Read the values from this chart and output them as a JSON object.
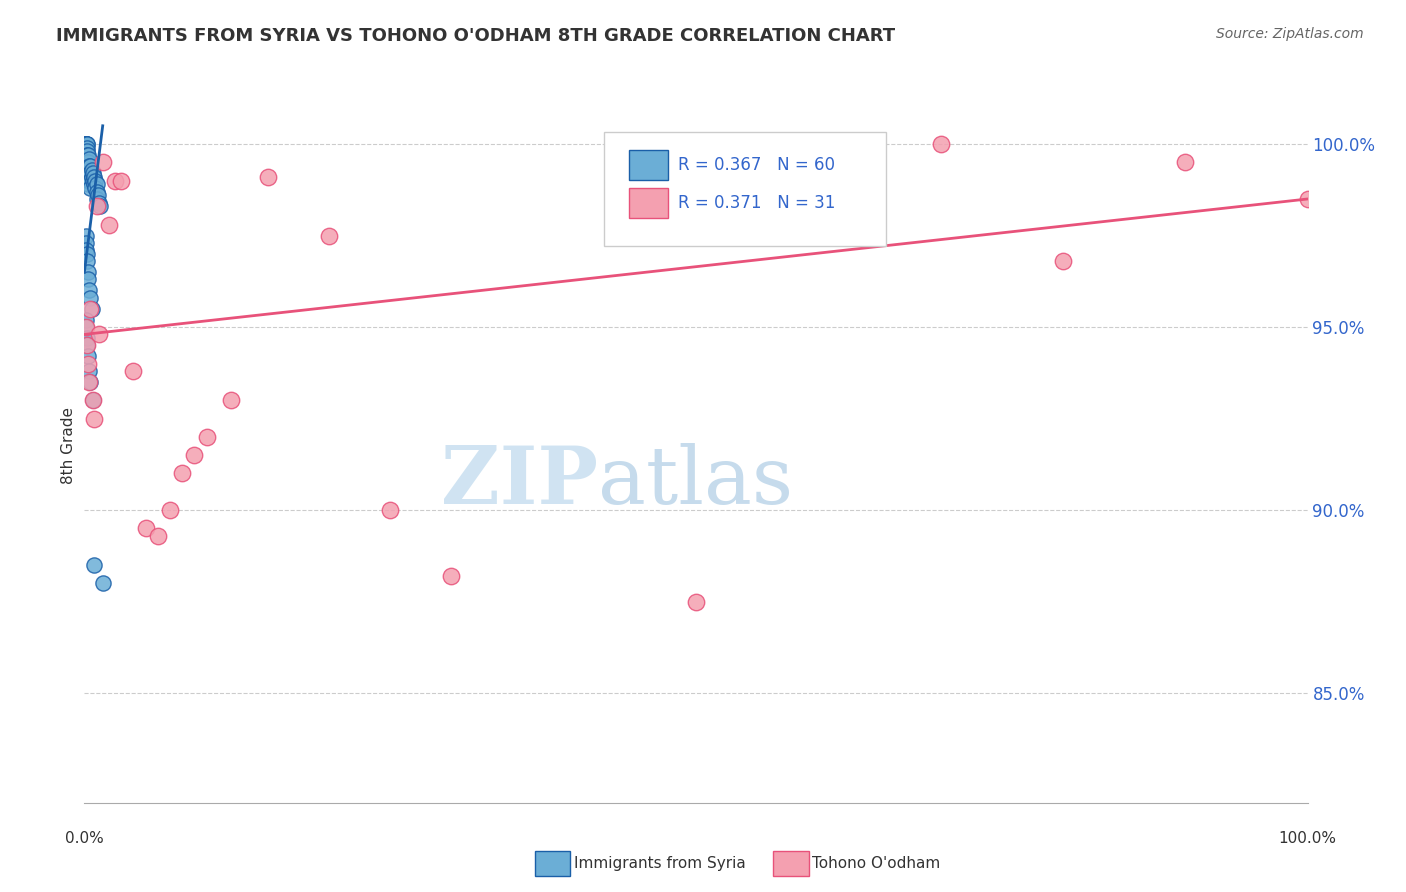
{
  "title": "IMMIGRANTS FROM SYRIA VS TOHONO O'ODHAM 8TH GRADE CORRELATION CHART",
  "source": "Source: ZipAtlas.com",
  "ylabel": "8th Grade",
  "yticks": [
    85.0,
    90.0,
    95.0,
    100.0
  ],
  "ytick_labels": [
    "85.0%",
    "90.0%",
    "95.0%",
    "100.0%"
  ],
  "xlim": [
    0.0,
    1.0
  ],
  "ylim": [
    82.0,
    101.5
  ],
  "blue_R": 0.367,
  "blue_N": 60,
  "pink_R": 0.371,
  "pink_N": 31,
  "blue_color": "#6baed6",
  "pink_color": "#f4a0b0",
  "blue_line_color": "#1a5fa8",
  "pink_line_color": "#e8527a",
  "legend_label_blue": "Immigrants from Syria",
  "legend_label_pink": "Tohono O'odham",
  "watermark_zip": "ZIP",
  "watermark_atlas": "atlas",
  "blue_scatter_x": [
    0.001,
    0.001,
    0.001,
    0.001,
    0.001,
    0.001,
    0.002,
    0.002,
    0.002,
    0.002,
    0.002,
    0.002,
    0.002,
    0.003,
    0.003,
    0.003,
    0.003,
    0.003,
    0.004,
    0.004,
    0.004,
    0.004,
    0.005,
    0.005,
    0.005,
    0.005,
    0.006,
    0.006,
    0.007,
    0.007,
    0.008,
    0.008,
    0.009,
    0.009,
    0.01,
    0.01,
    0.01,
    0.011,
    0.012,
    0.013,
    0.001,
    0.001,
    0.001,
    0.002,
    0.002,
    0.003,
    0.003,
    0.004,
    0.005,
    0.006,
    0.001,
    0.001,
    0.002,
    0.002,
    0.003,
    0.004,
    0.005,
    0.007,
    0.008,
    0.015
  ],
  "blue_scatter_y": [
    100.0,
    100.0,
    100.0,
    100.0,
    100.0,
    99.8,
    100.0,
    100.0,
    99.9,
    99.8,
    99.7,
    99.5,
    99.3,
    99.7,
    99.5,
    99.3,
    99.1,
    98.9,
    99.6,
    99.4,
    99.2,
    99.0,
    99.4,
    99.2,
    99.0,
    98.8,
    99.3,
    99.1,
    99.2,
    99.0,
    99.1,
    98.9,
    99.0,
    98.8,
    98.9,
    98.7,
    98.5,
    98.6,
    98.4,
    98.3,
    97.5,
    97.3,
    97.1,
    97.0,
    96.8,
    96.5,
    96.3,
    96.0,
    95.8,
    95.5,
    95.2,
    95.0,
    94.7,
    94.5,
    94.2,
    93.8,
    93.5,
    93.0,
    88.5,
    88.0
  ],
  "pink_scatter_x": [
    0.001,
    0.002,
    0.003,
    0.004,
    0.005,
    0.007,
    0.008,
    0.01,
    0.012,
    0.015,
    0.02,
    0.025,
    0.03,
    0.04,
    0.05,
    0.06,
    0.07,
    0.08,
    0.09,
    0.1,
    0.12,
    0.15,
    0.2,
    0.25,
    0.3,
    0.5,
    0.6,
    0.7,
    0.8,
    0.9,
    1.0
  ],
  "pink_scatter_y": [
    95.0,
    94.5,
    94.0,
    93.5,
    95.5,
    93.0,
    92.5,
    98.3,
    94.8,
    99.5,
    97.8,
    99.0,
    99.0,
    93.8,
    89.5,
    89.3,
    90.0,
    91.0,
    91.5,
    92.0,
    93.0,
    99.1,
    97.5,
    90.0,
    88.2,
    87.5,
    100.0,
    100.0,
    96.8,
    99.5,
    98.5
  ],
  "blue_trendline_x": [
    0.0,
    0.015
  ],
  "blue_trendline_y": [
    96.5,
    100.5
  ],
  "pink_trendline_x": [
    0.0,
    1.0
  ],
  "pink_trendline_y": [
    94.8,
    98.5
  ]
}
